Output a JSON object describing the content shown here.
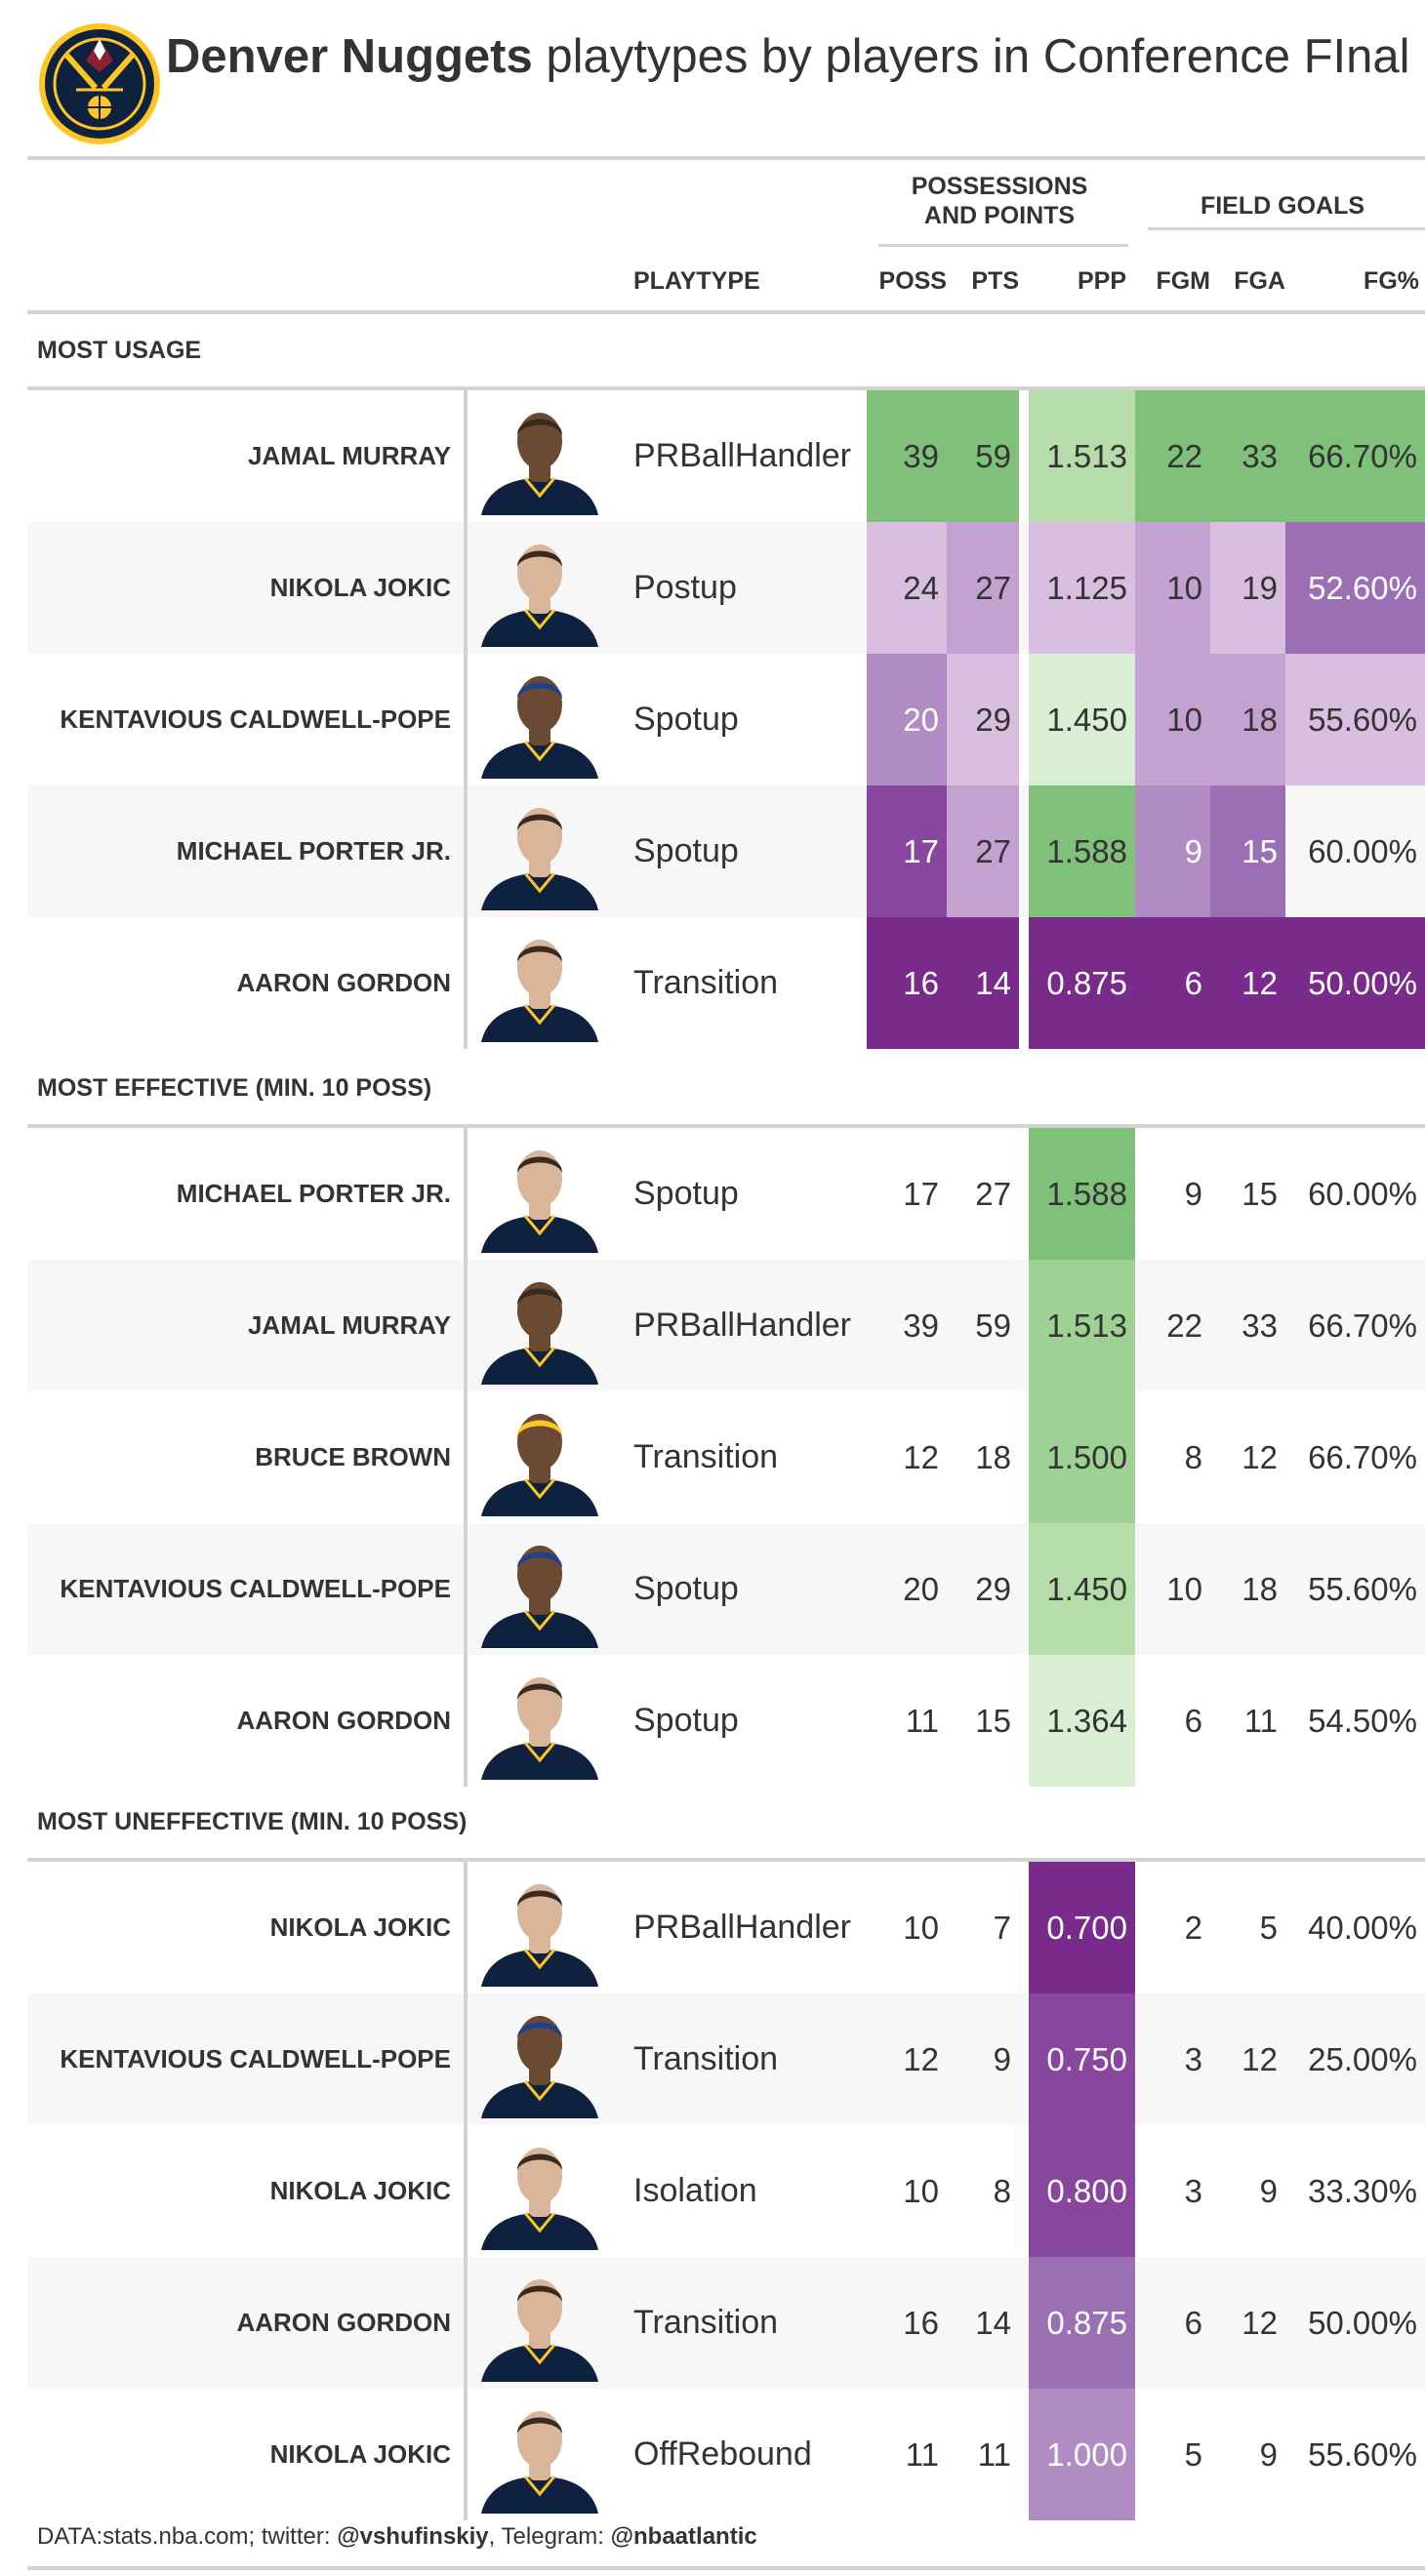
{
  "header": {
    "title_bold": "Denver Nuggets",
    "title_rest": " playtypes by players in Conference FInal"
  },
  "spanners": {
    "poss_points": [
      "POSSESSIONS",
      "AND POINTS"
    ],
    "field_goals": "FIELD GOALS"
  },
  "columns": {
    "playtype": "PLAYTYPE",
    "poss": "POSS",
    "pts": "PTS",
    "ppp": "PPP",
    "fgm": "FGM",
    "fga": "FGA",
    "fgpct": "FG%"
  },
  "colors": {
    "green_strong": "#7fc07a",
    "green_mid": "#9ed295",
    "green_light": "#b5dca9",
    "green_pale": "#d8efd3",
    "purple_pale": "#d8bedf",
    "purple_light": "#c3a2d2",
    "purple_mid": "#b08bc4",
    "purple_strong": "#9c6fb5",
    "purple_dark": "#88469e",
    "purple_darkest": "#782b8a",
    "heading_text": "#333333",
    "rule": "#d3d3d3",
    "nuggets_navy": "#0e2240",
    "nuggets_gold": "#fec524"
  },
  "chart_data": {
    "type": "table",
    "title": "Denver Nuggets playtypes by players in Conference FInal",
    "columns": [
      "PLAYTYPE",
      "POSS",
      "PTS",
      "PPP",
      "FGM",
      "FGA",
      "FG%"
    ],
    "groups": [
      {
        "label": "MOST USAGE",
        "rows": [
          {
            "player": "JAMAL MURRAY",
            "playtype": "PRBallHandler",
            "poss": "39",
            "pts": "59",
            "ppp": "1.513",
            "fgm": "22",
            "fga": "33",
            "fgpct": "66.70%",
            "fills": {
              "poss": "green_strong",
              "pts": "green_strong",
              "ppp": "green_light",
              "fgm": "green_strong",
              "fga": "green_strong",
              "fgpct": "green_strong"
            }
          },
          {
            "player": "NIKOLA JOKIC",
            "playtype": "Postup",
            "poss": "24",
            "pts": "27",
            "ppp": "1.125",
            "fgm": "10",
            "fga": "19",
            "fgpct": "52.60%",
            "fills": {
              "poss": "purple_pale",
              "pts": "purple_light",
              "ppp": "purple_pale",
              "fgm": "purple_light",
              "fga": "purple_pale",
              "fgpct": "purple_strong"
            }
          },
          {
            "player": "KENTAVIOUS CALDWELL-POPE",
            "playtype": "Spotup",
            "poss": "20",
            "pts": "29",
            "ppp": "1.450",
            "fgm": "10",
            "fga": "18",
            "fgpct": "55.60%",
            "fills": {
              "poss": "purple_mid",
              "pts": "purple_pale",
              "ppp": "green_pale",
              "fgm": "purple_light",
              "fga": "purple_light",
              "fgpct": "purple_pale"
            }
          },
          {
            "player": "MICHAEL PORTER JR.",
            "playtype": "Spotup",
            "poss": "17",
            "pts": "27",
            "ppp": "1.588",
            "fgm": "9",
            "fga": "15",
            "fgpct": "60.00%",
            "fills": {
              "poss": "purple_dark",
              "pts": "purple_light",
              "ppp": "green_strong",
              "fgm": "purple_mid",
              "fga": "purple_strong",
              "fgpct": null
            }
          },
          {
            "player": "AARON GORDON",
            "playtype": "Transition",
            "poss": "16",
            "pts": "14",
            "ppp": "0.875",
            "fgm": "6",
            "fga": "12",
            "fgpct": "50.00%",
            "fills": {
              "poss": "purple_darkest",
              "pts": "purple_darkest",
              "ppp": "purple_darkest",
              "fgm": "purple_darkest",
              "fga": "purple_darkest",
              "fgpct": "purple_darkest"
            }
          }
        ]
      },
      {
        "label": "MOST EFFECTIVE (MIN. 10 POSS)",
        "rows": [
          {
            "player": "MICHAEL PORTER JR.",
            "playtype": "Spotup",
            "poss": "17",
            "pts": "27",
            "ppp": "1.588",
            "fgm": "9",
            "fga": "15",
            "fgpct": "60.00%",
            "fills": {
              "ppp": "green_strong"
            }
          },
          {
            "player": "JAMAL MURRAY",
            "playtype": "PRBallHandler",
            "poss": "39",
            "pts": "59",
            "ppp": "1.513",
            "fgm": "22",
            "fga": "33",
            "fgpct": "66.70%",
            "fills": {
              "ppp": "green_mid"
            }
          },
          {
            "player": "BRUCE BROWN",
            "playtype": "Transition",
            "poss": "12",
            "pts": "18",
            "ppp": "1.500",
            "fgm": "8",
            "fga": "12",
            "fgpct": "66.70%",
            "fills": {
              "ppp": "green_mid"
            }
          },
          {
            "player": "KENTAVIOUS CALDWELL-POPE",
            "playtype": "Spotup",
            "poss": "20",
            "pts": "29",
            "ppp": "1.450",
            "fgm": "10",
            "fga": "18",
            "fgpct": "55.60%",
            "fills": {
              "ppp": "green_light"
            }
          },
          {
            "player": "AARON GORDON",
            "playtype": "Spotup",
            "poss": "11",
            "pts": "15",
            "ppp": "1.364",
            "fgm": "6",
            "fga": "11",
            "fgpct": "54.50%",
            "fills": {
              "ppp": "green_pale"
            }
          }
        ]
      },
      {
        "label": "MOST UNEFFECTIVE (MIN. 10 POSS)",
        "rows": [
          {
            "player": "NIKOLA JOKIC",
            "playtype": "PRBallHandler",
            "poss": "10",
            "pts": "7",
            "ppp": "0.700",
            "fgm": "2",
            "fga": "5",
            "fgpct": "40.00%",
            "fills": {
              "ppp": "purple_darkest"
            }
          },
          {
            "player": "KENTAVIOUS CALDWELL-POPE",
            "playtype": "Transition",
            "poss": "12",
            "pts": "9",
            "ppp": "0.750",
            "fgm": "3",
            "fga": "12",
            "fgpct": "25.00%",
            "fills": {
              "ppp": "purple_dark"
            }
          },
          {
            "player": "NIKOLA JOKIC",
            "playtype": "Isolation",
            "poss": "10",
            "pts": "8",
            "ppp": "0.800",
            "fgm": "3",
            "fga": "9",
            "fgpct": "33.30%",
            "fills": {
              "ppp": "purple_dark"
            }
          },
          {
            "player": "AARON GORDON",
            "playtype": "Transition",
            "poss": "16",
            "pts": "14",
            "ppp": "0.875",
            "fgm": "6",
            "fga": "12",
            "fgpct": "50.00%",
            "fills": {
              "ppp": "purple_strong"
            }
          },
          {
            "player": "NIKOLA JOKIC",
            "playtype": "OffRebound",
            "poss": "11",
            "pts": "11",
            "ppp": "1.000",
            "fgm": "5",
            "fga": "9",
            "fgpct": "55.60%",
            "fills": {
              "ppp": "purple_mid"
            }
          }
        ]
      }
    ]
  },
  "footer": {
    "prefix": "DATA:stats.nba.com; twitter: ",
    "twitter": "@vshufinskiy",
    "mid": ", Telegram: ",
    "telegram": "@nbaatlantic"
  }
}
